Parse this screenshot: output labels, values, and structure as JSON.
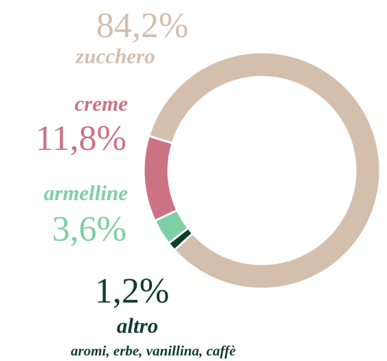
{
  "chart_data": {
    "type": "donut",
    "categories": [
      "zucchero",
      "creme",
      "armelline",
      "altro"
    ],
    "values": [
      84.2,
      11.8,
      3.6,
      1.2
    ],
    "value_labels": [
      "84,2%",
      "11,8%",
      "3,6%",
      "1,2%"
    ],
    "colors": [
      "#d4bfad",
      "#cb7383",
      "#7fcfa4",
      "#0f3d2f"
    ],
    "subtitle": "aromi, erbe, vanillina, caffè"
  }
}
